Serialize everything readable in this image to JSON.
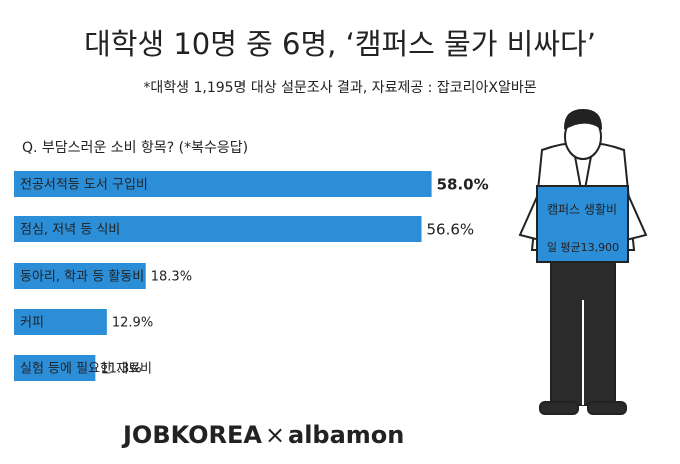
{
  "chart_data": {
    "type": "bar",
    "orientation": "horizontal",
    "title": "대학생 10명 중 6명, ‘캠퍼스 물가 비싸다’",
    "subtitle": "*대학생 1,195명 대상 설문조사 결과, 자료제공 : 잡코리아X알바몬",
    "question": "Q. 부담스러운 소비 항목? (*복수응답)",
    "categories": [
      "전공서적등 도서 구입비",
      "점심, 저녁 등 식비",
      "동아리, 학과 등 활동비",
      "커피",
      "실험 등에 필요한 재료비"
    ],
    "values": [
      58.0,
      56.6,
      18.3,
      12.9,
      11.3
    ],
    "value_labels": [
      "58.0%",
      "56.6%",
      "18.3%",
      "12.9%",
      "11.3%"
    ],
    "color": "#2d8ed8",
    "sign": {
      "title": "캠퍼스 생활비",
      "text": "일 평균13,900"
    },
    "logo": {
      "left": "JOBKOREA",
      "separator": "×",
      "right": "albamon"
    }
  }
}
